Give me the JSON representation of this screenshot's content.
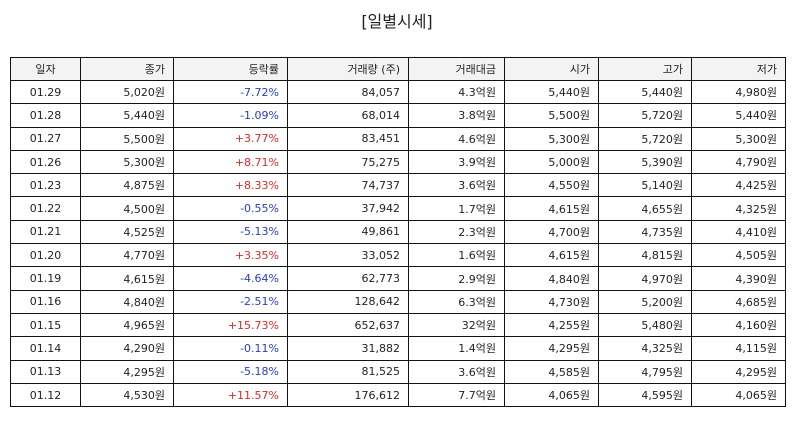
{
  "title": "[일별시세]",
  "columns": [
    "일자",
    "종가",
    "등락률",
    "거래량 (주)",
    "거래대금",
    "시가",
    "고가",
    "저가"
  ],
  "colors": {
    "up": "#d92a2a",
    "down": "#2a3bc0",
    "header_bg": "#f3f3f3"
  },
  "rows": [
    {
      "date": "01.29",
      "close": "5,020원",
      "change": "-7.72%",
      "dir": "down",
      "volume": "84,057",
      "amount": "4.3억원",
      "open": "5,440원",
      "high": "5,440원",
      "low": "4,980원"
    },
    {
      "date": "01.28",
      "close": "5,440원",
      "change": "-1.09%",
      "dir": "down",
      "volume": "68,014",
      "amount": "3.8억원",
      "open": "5,500원",
      "high": "5,720원",
      "low": "5,440원"
    },
    {
      "date": "01.27",
      "close": "5,500원",
      "change": "+3.77%",
      "dir": "up",
      "volume": "83,451",
      "amount": "4.6억원",
      "open": "5,300원",
      "high": "5,720원",
      "low": "5,300원"
    },
    {
      "date": "01.26",
      "close": "5,300원",
      "change": "+8.71%",
      "dir": "up",
      "volume": "75,275",
      "amount": "3.9억원",
      "open": "5,000원",
      "high": "5,390원",
      "low": "4,790원"
    },
    {
      "date": "01.23",
      "close": "4,875원",
      "change": "+8.33%",
      "dir": "up",
      "volume": "74,737",
      "amount": "3.6억원",
      "open": "4,550원",
      "high": "5,140원",
      "low": "4,425원"
    },
    {
      "date": "01.22",
      "close": "4,500원",
      "change": "-0.55%",
      "dir": "down",
      "volume": "37,942",
      "amount": "1.7억원",
      "open": "4,615원",
      "high": "4,655원",
      "low": "4,325원"
    },
    {
      "date": "01.21",
      "close": "4,525원",
      "change": "-5.13%",
      "dir": "down",
      "volume": "49,861",
      "amount": "2.3억원",
      "open": "4,700원",
      "high": "4,735원",
      "low": "4,410원"
    },
    {
      "date": "01.20",
      "close": "4,770원",
      "change": "+3.35%",
      "dir": "up",
      "volume": "33,052",
      "amount": "1.6억원",
      "open": "4,615원",
      "high": "4,815원",
      "low": "4,505원"
    },
    {
      "date": "01.19",
      "close": "4,615원",
      "change": "-4.64%",
      "dir": "down",
      "volume": "62,773",
      "amount": "2.9억원",
      "open": "4,840원",
      "high": "4,970원",
      "low": "4,390원"
    },
    {
      "date": "01.16",
      "close": "4,840원",
      "change": "-2.51%",
      "dir": "down",
      "volume": "128,642",
      "amount": "6.3억원",
      "open": "4,730원",
      "high": "5,200원",
      "low": "4,685원"
    },
    {
      "date": "01.15",
      "close": "4,965원",
      "change": "+15.73%",
      "dir": "up",
      "volume": "652,637",
      "amount": "32억원",
      "open": "4,255원",
      "high": "5,480원",
      "low": "4,160원"
    },
    {
      "date": "01.14",
      "close": "4,290원",
      "change": "-0.11%",
      "dir": "down",
      "volume": "31,882",
      "amount": "1.4억원",
      "open": "4,295원",
      "high": "4,325원",
      "low": "4,115원"
    },
    {
      "date": "01.13",
      "close": "4,295원",
      "change": "-5.18%",
      "dir": "down",
      "volume": "81,525",
      "amount": "3.6억원",
      "open": "4,585원",
      "high": "4,795원",
      "low": "4,295원"
    },
    {
      "date": "01.12",
      "close": "4,530원",
      "change": "+11.57%",
      "dir": "up",
      "volume": "176,612",
      "amount": "7.7억원",
      "open": "4,065원",
      "high": "4,595원",
      "low": "4,065원"
    }
  ]
}
